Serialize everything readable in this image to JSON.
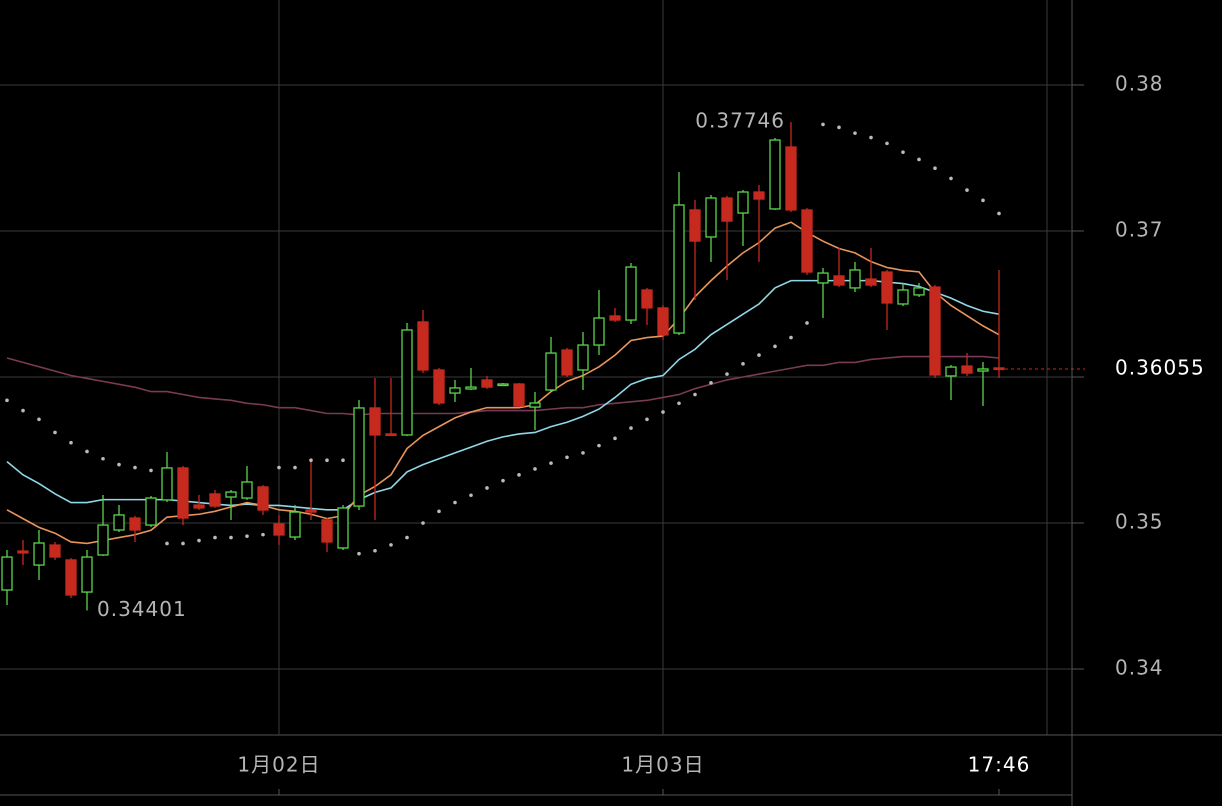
{
  "chart_data": {
    "type": "candlestick",
    "categories": [
      null,
      null,
      null,
      null,
      null,
      null,
      null,
      null,
      null,
      null,
      null,
      null,
      null,
      null,
      null,
      null,
      null,
      "1月02日",
      null,
      null,
      null,
      null,
      null,
      null,
      null,
      null,
      null,
      null,
      null,
      null,
      null,
      null,
      null,
      null,
      null,
      null,
      null,
      null,
      null,
      null,
      null,
      "1月03日",
      null,
      null,
      null,
      null,
      null,
      null,
      null,
      null,
      null,
      null,
      null,
      null,
      null,
      null,
      null,
      null,
      null,
      null,
      null,
      null,
      "17:46"
    ],
    "open": [
      0.34541,
      0.34808,
      0.34712,
      0.34849,
      0.34747,
      0.34527,
      0.34781,
      0.34952,
      0.35034,
      0.34986,
      0.35158,
      0.35377,
      0.35123,
      0.35199,
      0.35178,
      0.35171,
      0.35247,
      0.34993,
      0.34904,
      0.35089,
      0.35021,
      0.34829,
      0.35116,
      0.35788,
      0.3561,
      0.35603,
      0.36377,
      0.36048,
      0.3589,
      0.35918,
      0.3598,
      0.35952,
      0.35952,
      0.35794,
      0.35911,
      0.36185,
      0.36048,
      0.36219,
      0.36418,
      0.3639,
      0.36596,
      0.36473,
      0.36301,
      0.37144,
      0.36959,
      0.37226,
      0.37123,
      0.37267,
      0.37151,
      0.37575,
      0.37144,
      0.36644,
      0.36692,
      0.3661,
      0.36671,
      0.36719,
      0.365,
      0.36562,
      0.36616,
      0.36007,
      0.36075,
      0.36041,
      0.36062
    ],
    "high": [
      0.34815,
      0.34884,
      0.34952,
      0.3487,
      0.3476,
      0.34815,
      0.35192,
      0.35123,
      0.35048,
      0.35185,
      0.35486,
      0.3539,
      0.35192,
      0.35226,
      0.35226,
      0.3539,
      0.3526,
      0.35055,
      0.35123,
      0.35431,
      0.35034,
      0.35123,
      0.35842,
      0.35993,
      0.35993,
      0.3637,
      0.36459,
      0.36062,
      0.3598,
      0.36062,
      0.36007,
      0.35959,
      0.35959,
      0.35897,
      0.36274,
      0.36199,
      0.36308,
      0.36596,
      0.36473,
      0.36781,
      0.3661,
      0.36493,
      0.37404,
      0.37212,
      0.37246,
      0.3724,
      0.37281,
      0.37315,
      0.37637,
      0.37746,
      0.37157,
      0.36747,
      0.36883,
      0.36788,
      0.36883,
      0.36733,
      0.36644,
      0.36644,
      0.3663,
      0.36082,
      0.36164,
      0.36103,
      0.36733
    ],
    "low": [
      0.34438,
      0.34712,
      0.3461,
      0.34747,
      0.34486,
      0.34401,
      0.34774,
      0.34938,
      0.3487,
      0.34973,
      0.35144,
      0.34986,
      0.35089,
      0.35103,
      0.35021,
      0.35158,
      0.35055,
      0.34849,
      0.34883,
      0.35021,
      0.34801,
      0.34815,
      0.35089,
      0.35021,
      0.35596,
      0.35596,
      0.36027,
      0.35808,
      0.35829,
      0.35911,
      0.35918,
      0.35945,
      0.35794,
      0.35637,
      0.35904,
      0.36,
      0.35911,
      0.36151,
      0.36377,
      0.36363,
      0.36356,
      0.36253,
      0.36288,
      0.36527,
      0.36788,
      0.36664,
      0.36897,
      0.36788,
      0.37144,
      0.3713,
      0.36699,
      0.36404,
      0.36616,
      0.36582,
      0.36616,
      0.36322,
      0.36486,
      0.36548,
      0.35993,
      0.35842,
      0.36007,
      0.35801,
      0.35993
    ],
    "close": [
      0.34767,
      0.34795,
      0.34863,
      0.34767,
      0.34507,
      0.34767,
      0.34986,
      0.35055,
      0.34952,
      0.35171,
      0.35377,
      0.35034,
      0.35103,
      0.35116,
      0.35212,
      0.35281,
      0.35089,
      0.34918,
      0.35075,
      0.35075,
      0.3487,
      0.35103,
      0.35788,
      0.35603,
      0.35603,
      0.36322,
      0.36048,
      0.35822,
      0.35925,
      0.35931,
      0.35931,
      0.35952,
      0.35801,
      0.35822,
      0.36164,
      0.36014,
      0.36219,
      0.36404,
      0.3639,
      0.36753,
      0.36473,
      0.36288,
      0.37178,
      0.36931,
      0.37226,
      0.37068,
      0.37267,
      0.37219,
      0.37623,
      0.37144,
      0.36719,
      0.36712,
      0.3663,
      0.36733,
      0.3663,
      0.36507,
      0.36596,
      0.3661,
      0.36014,
      0.36068,
      0.36027,
      0.36055,
      0.36055
    ],
    "up_color": "#59d64b",
    "down_color": "#c62a1e",
    "overlays": [
      {
        "type": "line",
        "color": "#7a3a55",
        "values": [
          0.3613,
          0.361,
          0.3607,
          0.3604,
          0.3601,
          0.3599,
          0.3597,
          0.3595,
          0.3593,
          0.359,
          0.359,
          0.3588,
          0.3586,
          0.3585,
          0.3584,
          0.3582,
          0.3581,
          0.3579,
          0.3579,
          0.3577,
          0.3575,
          0.3575,
          0.3574,
          0.3575,
          0.3575,
          0.3575,
          0.3575,
          0.3575,
          0.3575,
          0.3576,
          0.3577,
          0.3577,
          0.3577,
          0.3577,
          0.3578,
          0.3579,
          0.3579,
          0.3581,
          0.3582,
          0.3583,
          0.3584,
          0.3586,
          0.3588,
          0.3592,
          0.3595,
          0.3598,
          0.36,
          0.3602,
          0.3604,
          0.3606,
          0.3608,
          0.3608,
          0.361,
          0.361,
          0.3612,
          0.3613,
          0.3614,
          0.3614,
          0.3614,
          0.3614,
          0.3614,
          0.3614,
          0.3613
        ]
      },
      {
        "type": "line",
        "color": "#8fd8e8",
        "values": [
          0.3542,
          0.3533,
          0.3527,
          0.352,
          0.3514,
          0.3514,
          0.3516,
          0.3516,
          0.3516,
          0.3516,
          0.3516,
          0.3515,
          0.3514,
          0.3513,
          0.3512,
          0.3513,
          0.3512,
          0.3512,
          0.3511,
          0.351,
          0.3509,
          0.3509,
          0.3516,
          0.3521,
          0.3524,
          0.3535,
          0.354,
          0.3544,
          0.3548,
          0.3552,
          0.3556,
          0.3559,
          0.3561,
          0.3562,
          0.3566,
          0.3569,
          0.3573,
          0.3578,
          0.3586,
          0.3595,
          0.3599,
          0.3601,
          0.3612,
          0.3619,
          0.3629,
          0.3636,
          0.3643,
          0.365,
          0.3661,
          0.3666,
          0.3666,
          0.3666,
          0.3666,
          0.3666,
          0.3666,
          0.3665,
          0.3664,
          0.3662,
          0.3658,
          0.3654,
          0.3649,
          0.3645,
          0.3643
        ]
      },
      {
        "type": "line",
        "color": "#e8955a",
        "values": [
          0.3509,
          0.3503,
          0.3497,
          0.3493,
          0.3487,
          0.3486,
          0.3488,
          0.349,
          0.3492,
          0.3495,
          0.3504,
          0.3505,
          0.3506,
          0.3508,
          0.3511,
          0.3514,
          0.3512,
          0.3509,
          0.3508,
          0.3506,
          0.3503,
          0.3505,
          0.3519,
          0.3525,
          0.3533,
          0.3551,
          0.356,
          0.3566,
          0.3572,
          0.3576,
          0.3579,
          0.3579,
          0.3579,
          0.3581,
          0.359,
          0.3597,
          0.3601,
          0.3607,
          0.3615,
          0.3625,
          0.3627,
          0.3628,
          0.364,
          0.3655,
          0.3666,
          0.3676,
          0.3685,
          0.3692,
          0.3702,
          0.3706,
          0.3699,
          0.3693,
          0.3688,
          0.3685,
          0.3679,
          0.3675,
          0.3673,
          0.3672,
          0.3658,
          0.3649,
          0.3642,
          0.3635,
          0.3629
        ]
      },
      {
        "type": "dots",
        "color": "#bbbbbb",
        "values": [
          0.3584,
          0.3577,
          0.3571,
          0.3562,
          0.3555,
          0.3549,
          0.3544,
          0.354,
          0.3538,
          0.3536,
          0.3486,
          0.3486,
          0.3488,
          0.349,
          0.349,
          0.3491,
          0.3492,
          0.3538,
          0.3538,
          0.3543,
          0.3543,
          0.3543,
          0.3479,
          0.3481,
          0.3485,
          0.349,
          0.35,
          0.3508,
          0.3514,
          0.3519,
          0.3524,
          0.3529,
          0.3533,
          0.3537,
          0.3541,
          0.3545,
          0.3548,
          0.3553,
          0.3558,
          0.3565,
          0.3571,
          0.3576,
          0.3582,
          0.3588,
          0.3596,
          0.3602,
          0.3609,
          0.3615,
          0.3621,
          0.3627,
          0.3637,
          0.3773,
          0.3771,
          0.3767,
          0.3764,
          0.376,
          0.3754,
          0.3749,
          0.3743,
          0.3736,
          0.3728,
          0.3721,
          0.3712
        ]
      }
    ],
    "high_label": 0.37746,
    "low_label": 0.34401,
    "last_price": 0.36055,
    "last_price_color": "#c62a1e",
    "ylim": [
      0.33548,
      0.38582
    ],
    "yticks": [
      0.34,
      0.35,
      0.36,
      0.37,
      0.38
    ],
    "grid": true
  }
}
